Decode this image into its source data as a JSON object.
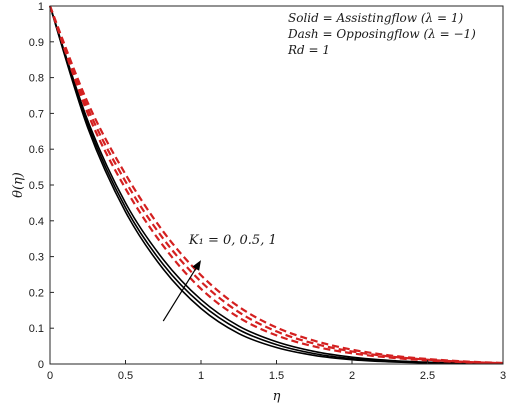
{
  "chart_data": {
    "type": "line",
    "title": "",
    "xlabel": "η",
    "ylabel": "θ(η)",
    "xlim": [
      0,
      3
    ],
    "ylim": [
      0,
      1
    ],
    "xticks": [
      0,
      0.5,
      1,
      1.5,
      2,
      2.5,
      3
    ],
    "yticks": [
      0,
      0.1,
      0.2,
      0.3,
      0.4,
      0.5,
      0.6,
      0.7,
      0.8,
      0.9,
      1
    ],
    "xtick_labels": [
      "0",
      "0.5",
      "1",
      "1.5",
      "2",
      "2.5",
      "3"
    ],
    "ytick_labels": [
      "0",
      "0.1",
      "0.2",
      "0.3",
      "0.4",
      "0.5",
      "0.6",
      "0.7",
      "0.8",
      "0.9",
      "1"
    ],
    "grid": false,
    "legend_lines": [
      "Solid = Assistingflow (λ = 1)",
      "Dash = Opposingflow (λ = −1)",
      "Rd = 1"
    ],
    "legend_placement": "top-right",
    "annotation": {
      "text": "K₁ = 0, 0.5, 1",
      "arrow_from": [
        0.75,
        0.12
      ],
      "arrow_to": [
        1.0,
        0.29
      ]
    },
    "colors": {
      "solid": "#000000",
      "dash": "#d42020"
    },
    "series": [
      {
        "style": "solid",
        "x": [
          0,
          0.25,
          0.5,
          0.75,
          1,
          1.25,
          1.5,
          1.75,
          2,
          2.25,
          2.5,
          2.75,
          3
        ],
        "y": [
          1,
          0.66,
          0.425,
          0.265,
          0.155,
          0.085,
          0.046,
          0.024,
          0.012,
          0.006,
          0.003,
          0.0015,
          0.001
        ]
      },
      {
        "style": "solid",
        "x": [
          0,
          0.25,
          0.5,
          0.75,
          1,
          1.25,
          1.5,
          1.75,
          2,
          2.25,
          2.5,
          2.75,
          3
        ],
        "y": [
          1,
          0.67,
          0.437,
          0.278,
          0.168,
          0.096,
          0.054,
          0.029,
          0.015,
          0.008,
          0.004,
          0.002,
          0.001
        ]
      },
      {
        "style": "solid",
        "x": [
          0,
          0.25,
          0.5,
          0.75,
          1,
          1.25,
          1.5,
          1.75,
          2,
          2.25,
          2.5,
          2.75,
          3
        ],
        "y": [
          1,
          0.68,
          0.45,
          0.292,
          0.18,
          0.106,
          0.062,
          0.035,
          0.019,
          0.01,
          0.005,
          0.0025,
          0.001
        ]
      },
      {
        "style": "dash",
        "x": [
          0,
          0.25,
          0.5,
          0.75,
          1,
          1.25,
          1.5,
          1.75,
          2,
          2.25,
          2.5,
          2.75,
          3
        ],
        "y": [
          1,
          0.7,
          0.49,
          0.33,
          0.21,
          0.13,
          0.08,
          0.049,
          0.03,
          0.018,
          0.01,
          0.005,
          0.002
        ]
      },
      {
        "style": "dash",
        "x": [
          0,
          0.25,
          0.5,
          0.75,
          1,
          1.25,
          1.5,
          1.75,
          2,
          2.25,
          2.5,
          2.75,
          3
        ],
        "y": [
          1,
          0.715,
          0.51,
          0.35,
          0.23,
          0.145,
          0.091,
          0.057,
          0.035,
          0.021,
          0.012,
          0.006,
          0.002
        ]
      },
      {
        "style": "dash",
        "x": [
          0,
          0.25,
          0.5,
          0.75,
          1,
          1.25,
          1.5,
          1.75,
          2,
          2.25,
          2.5,
          2.75,
          3
        ],
        "y": [
          1,
          0.73,
          0.53,
          0.37,
          0.248,
          0.16,
          0.102,
          0.065,
          0.04,
          0.024,
          0.014,
          0.007,
          0.003
        ]
      }
    ]
  }
}
